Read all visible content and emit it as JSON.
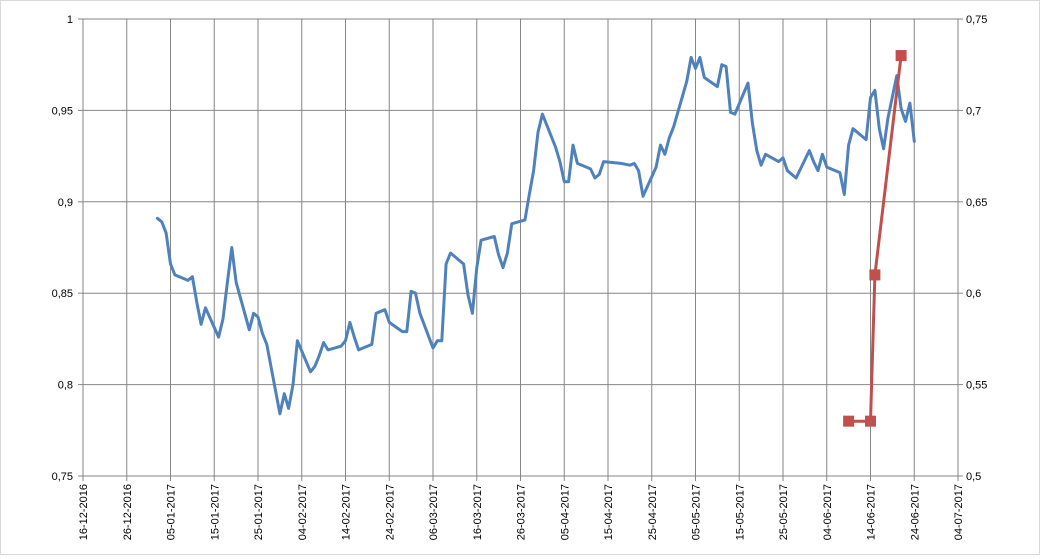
{
  "chart_data": {
    "type": "line",
    "title": "",
    "xlabel": "",
    "ylabel": "",
    "x_axis": {
      "type": "date",
      "range": [
        "2016-12-16",
        "2017-07-04"
      ],
      "tick_labels": [
        "16-12-2016",
        "26-12-2016",
        "05-01-2017",
        "15-01-2017",
        "25-01-2017",
        "04-02-2017",
        "14-02-2017",
        "24-02-2017",
        "06-03-2017",
        "16-03-2017",
        "26-03-2017",
        "05-04-2017",
        "15-04-2017",
        "25-04-2017",
        "05-05-2017",
        "15-05-2017",
        "25-05-2017",
        "04-06-2017",
        "14-06-2017",
        "24-06-2017",
        "04-07-2017"
      ]
    },
    "y_left": {
      "range": [
        0.75,
        1.0
      ],
      "tick_labels": [
        "0,75",
        "0,8",
        "0,85",
        "0,9",
        "0,95",
        "1"
      ]
    },
    "y_right": {
      "range": [
        0.5,
        0.75
      ],
      "tick_labels": [
        "0,5",
        "0,55",
        "0,6",
        "0,65",
        "0,7",
        "0,75"
      ]
    },
    "grid": true,
    "legend": "none",
    "series": [
      {
        "axis": "left",
        "color": "#4f81bd",
        "marker": "none",
        "points": [
          [
            "2017-01-02",
            0.891
          ],
          [
            "2017-01-03",
            0.889
          ],
          [
            "2017-01-04",
            0.883
          ],
          [
            "2017-01-05",
            0.866
          ],
          [
            "2017-01-06",
            0.86
          ],
          [
            "2017-01-09",
            0.857
          ],
          [
            "2017-01-10",
            0.859
          ],
          [
            "2017-01-11",
            0.845
          ],
          [
            "2017-01-12",
            0.833
          ],
          [
            "2017-01-13",
            0.842
          ],
          [
            "2017-01-16",
            0.826
          ],
          [
            "2017-01-17",
            0.836
          ],
          [
            "2017-01-18",
            0.856
          ],
          [
            "2017-01-19",
            0.875
          ],
          [
            "2017-01-20",
            0.856
          ],
          [
            "2017-01-23",
            0.83
          ],
          [
            "2017-01-24",
            0.839
          ],
          [
            "2017-01-25",
            0.837
          ],
          [
            "2017-01-26",
            0.828
          ],
          [
            "2017-01-27",
            0.822
          ],
          [
            "2017-01-30",
            0.784
          ],
          [
            "2017-01-31",
            0.795
          ],
          [
            "2017-02-01",
            0.787
          ],
          [
            "2017-02-02",
            0.8
          ],
          [
            "2017-02-03",
            0.824
          ],
          [
            "2017-02-06",
            0.807
          ],
          [
            "2017-02-07",
            0.81
          ],
          [
            "2017-02-08",
            0.816
          ],
          [
            "2017-02-09",
            0.823
          ],
          [
            "2017-02-10",
            0.819
          ],
          [
            "2017-02-13",
            0.821
          ],
          [
            "2017-02-14",
            0.824
          ],
          [
            "2017-02-15",
            0.834
          ],
          [
            "2017-02-16",
            0.826
          ],
          [
            "2017-02-17",
            0.819
          ],
          [
            "2017-02-20",
            0.822
          ],
          [
            "2017-02-21",
            0.839
          ],
          [
            "2017-02-23",
            0.841
          ],
          [
            "2017-02-24",
            0.834
          ],
          [
            "2017-02-27",
            0.829
          ],
          [
            "2017-02-28",
            0.829
          ],
          [
            "2017-03-01",
            0.851
          ],
          [
            "2017-03-02",
            0.85
          ],
          [
            "2017-03-03",
            0.839
          ],
          [
            "2017-03-06",
            0.82
          ],
          [
            "2017-03-07",
            0.824
          ],
          [
            "2017-03-08",
            0.824
          ],
          [
            "2017-03-09",
            0.866
          ],
          [
            "2017-03-10",
            0.872
          ],
          [
            "2017-03-13",
            0.866
          ],
          [
            "2017-03-14",
            0.849
          ],
          [
            "2017-03-15",
            0.839
          ],
          [
            "2017-03-16",
            0.864
          ],
          [
            "2017-03-17",
            0.879
          ],
          [
            "2017-03-20",
            0.881
          ],
          [
            "2017-03-21",
            0.871
          ],
          [
            "2017-03-22",
            0.864
          ],
          [
            "2017-03-23",
            0.872
          ],
          [
            "2017-03-24",
            0.888
          ],
          [
            "2017-03-27",
            0.89
          ],
          [
            "2017-03-28",
            0.904
          ],
          [
            "2017-03-29",
            0.917
          ],
          [
            "2017-03-30",
            0.938
          ],
          [
            "2017-03-31",
            0.948
          ],
          [
            "2017-04-03",
            0.93
          ],
          [
            "2017-04-04",
            0.922
          ],
          [
            "2017-04-05",
            0.911
          ],
          [
            "2017-04-06",
            0.911
          ],
          [
            "2017-04-07",
            0.931
          ],
          [
            "2017-04-08",
            0.921
          ],
          [
            "2017-04-11",
            0.918
          ],
          [
            "2017-04-12",
            0.913
          ],
          [
            "2017-04-13",
            0.915
          ],
          [
            "2017-04-14",
            0.922
          ],
          [
            "2017-04-18",
            0.921
          ],
          [
            "2017-04-20",
            0.92
          ],
          [
            "2017-04-21",
            0.921
          ],
          [
            "2017-04-22",
            0.917
          ],
          [
            "2017-04-23",
            0.903
          ],
          [
            "2017-04-26",
            0.919
          ],
          [
            "2017-04-27",
            0.931
          ],
          [
            "2017-04-28",
            0.926
          ],
          [
            "2017-04-29",
            0.935
          ],
          [
            "2017-04-30",
            0.941
          ],
          [
            "2017-05-03",
            0.966
          ],
          [
            "2017-05-04",
            0.979
          ],
          [
            "2017-05-05",
            0.973
          ],
          [
            "2017-05-06",
            0.979
          ],
          [
            "2017-05-07",
            0.968
          ],
          [
            "2017-05-10",
            0.963
          ],
          [
            "2017-05-11",
            0.975
          ],
          [
            "2017-05-12",
            0.974
          ],
          [
            "2017-05-13",
            0.949
          ],
          [
            "2017-05-14",
            0.948
          ],
          [
            "2017-05-17",
            0.965
          ],
          [
            "2017-05-18",
            0.943
          ],
          [
            "2017-05-19",
            0.928
          ],
          [
            "2017-05-20",
            0.92
          ],
          [
            "2017-05-21",
            0.926
          ],
          [
            "2017-05-24",
            0.922
          ],
          [
            "2017-05-25",
            0.924
          ],
          [
            "2017-05-26",
            0.917
          ],
          [
            "2017-05-28",
            0.913
          ],
          [
            "2017-05-31",
            0.928
          ],
          [
            "2017-06-01",
            0.922
          ],
          [
            "2017-06-02",
            0.917
          ],
          [
            "2017-06-03",
            0.926
          ],
          [
            "2017-06-04",
            0.919
          ],
          [
            "2017-06-07",
            0.916
          ],
          [
            "2017-06-08",
            0.904
          ],
          [
            "2017-06-09",
            0.931
          ],
          [
            "2017-06-10",
            0.94
          ],
          [
            "2017-06-13",
            0.934
          ],
          [
            "2017-06-14",
            0.957
          ],
          [
            "2017-06-15",
            0.961
          ],
          [
            "2017-06-16",
            0.94
          ],
          [
            "2017-06-17",
            0.929
          ],
          [
            "2017-06-18",
            0.946
          ],
          [
            "2017-06-20",
            0.969
          ],
          [
            "2017-06-21",
            0.951
          ],
          [
            "2017-06-22",
            0.944
          ],
          [
            "2017-06-23",
            0.954
          ],
          [
            "2017-06-24",
            0.933
          ]
        ]
      },
      {
        "axis": "right",
        "color": "#c0504d",
        "marker": "square",
        "points": [
          [
            "2017-06-09",
            0.53
          ],
          [
            "2017-06-14",
            0.53
          ],
          [
            "2017-06-15",
            0.61
          ],
          [
            "2017-06-21",
            0.73
          ]
        ]
      }
    ]
  }
}
